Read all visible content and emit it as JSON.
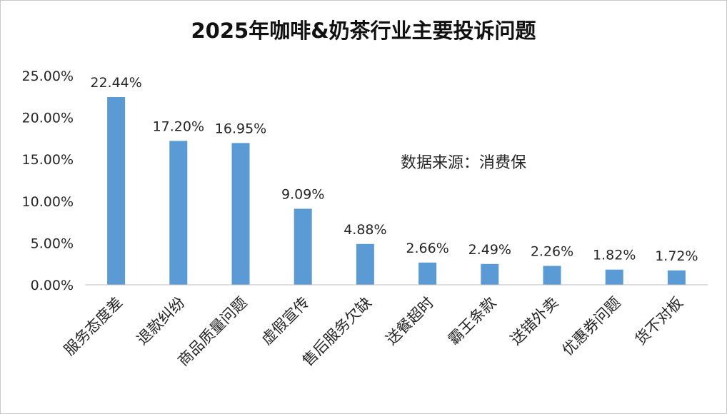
{
  "chart_data": {
    "type": "bar",
    "title": "2025年咖啡&奶茶行业主要投诉问题",
    "categories": [
      "服务态度差",
      "退款纠纷",
      "商品质量问题",
      "虚假宣传",
      "售后服务欠缺",
      "送餐超时",
      "霸王条款",
      "送错外卖",
      "优惠券问题",
      "货不对板"
    ],
    "values": [
      22.44,
      17.2,
      16.95,
      9.09,
      4.88,
      2.66,
      2.49,
      2.26,
      1.82,
      1.72
    ],
    "data_labels": [
      "22.44%",
      "17.20%",
      "16.95%",
      "9.09%",
      "4.88%",
      "2.66%",
      "2.49%",
      "2.26%",
      "1.82%",
      "1.72%"
    ],
    "y_ticks": [
      0,
      5,
      10,
      15,
      20,
      25
    ],
    "y_tick_labels": [
      "0.00%",
      "5.00%",
      "10.00%",
      "15.00%",
      "20.00%",
      "25.00%"
    ],
    "ylim": [
      0,
      25
    ],
    "xlabel": "",
    "ylabel": "",
    "grid": false,
    "legend": "none",
    "annotation": "数据来源：消费保",
    "bar_color": "#5b9bd5"
  }
}
